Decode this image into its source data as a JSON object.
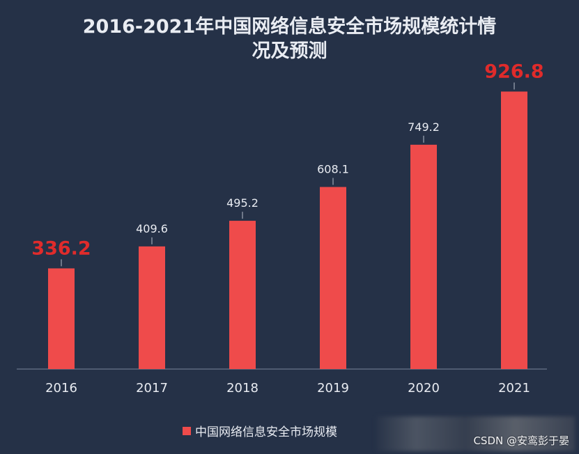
{
  "chart_data": {
    "type": "bar",
    "title_line1": "2016-2021年中国网络信息安全市场规模统计情",
    "title_line2": "况及预测",
    "categories": [
      "2016",
      "2017",
      "2018",
      "2019",
      "2020",
      "2021"
    ],
    "values": [
      336.2,
      409.6,
      495.2,
      608.1,
      749.2,
      926.8
    ],
    "value_labels": [
      "336.2",
      "409.6",
      "495.2",
      "608.1",
      "749.2",
      "926.8"
    ],
    "highlighted": [
      true,
      false,
      false,
      false,
      false,
      true
    ],
    "series": [
      {
        "name": "中国网络信息安全市场规模",
        "values": [
          336.2,
          409.6,
          495.2,
          608.1,
          749.2,
          926.8
        ]
      }
    ],
    "legend_placement": "bottom",
    "grid": false,
    "ylim": [
      0,
      1000
    ],
    "colors": {
      "background": "#253147",
      "bar": "#ef4b4b",
      "label": "#e9ecf2",
      "highlight_label": "#e02b2b",
      "axis": "#5f6a80"
    }
  },
  "legend": {
    "label": "中国网络信息安全市场规模"
  },
  "watermark": {
    "text": "CSDN @安鸾彭于晏"
  }
}
